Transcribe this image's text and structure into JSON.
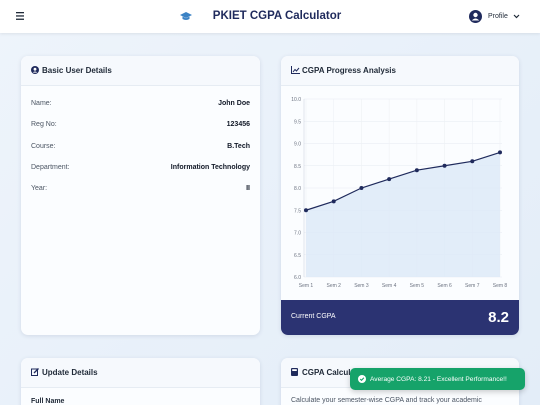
{
  "header": {
    "title": "PKIET CGPA Calculator",
    "profile": "Profile"
  },
  "user_card": {
    "title": "Basic User Details",
    "rows": [
      {
        "label": "Name:",
        "value": "John Doe"
      },
      {
        "label": "Reg No:",
        "value": "123456"
      },
      {
        "label": "Course:",
        "value": "B.Tech"
      },
      {
        "label": "Department:",
        "value": "Information Technology"
      },
      {
        "label": "Year:",
        "value": "II"
      }
    ]
  },
  "chart_card": {
    "title": "CGPA Progress Analysis",
    "footer_label": "Current CGPA",
    "footer_value": "8.2"
  },
  "chart_data": {
    "type": "line",
    "categories": [
      "Sem 1",
      "Sem 2",
      "Sem 3",
      "Sem 4",
      "Sem 5",
      "Sem 6",
      "Sem 7",
      "Sem 8"
    ],
    "values": [
      7.5,
      7.7,
      8.0,
      8.2,
      8.4,
      8.5,
      8.6,
      8.8
    ],
    "color": "#1f2a5c",
    "area_color": "#dce9f7",
    "ylim": [
      6,
      10
    ],
    "yticks": [
      {
        "value": 6,
        "label": "6.0"
      },
      {
        "value": 6.5,
        "label": "6.5"
      },
      {
        "value": 7,
        "label": "7.0"
      },
      {
        "value": 7.5,
        "label": "7.5"
      },
      {
        "value": 8,
        "label": "8.0"
      },
      {
        "value": 8.5,
        "label": "8.5"
      },
      {
        "value": 9,
        "label": "9.0"
      },
      {
        "value": 9.5,
        "label": "9.5"
      },
      {
        "value": 10,
        "label": "10.0"
      }
    ],
    "grid": true
  },
  "update_card": {
    "title": "Update Details",
    "field": "Full Name"
  },
  "calc_card": {
    "title": "CGPA Calculator",
    "text": "Calculate your semester-wise CGPA and track your academic"
  },
  "toast": {
    "text": "Average CGPA: 8.21 - Excellent Performance!!"
  }
}
